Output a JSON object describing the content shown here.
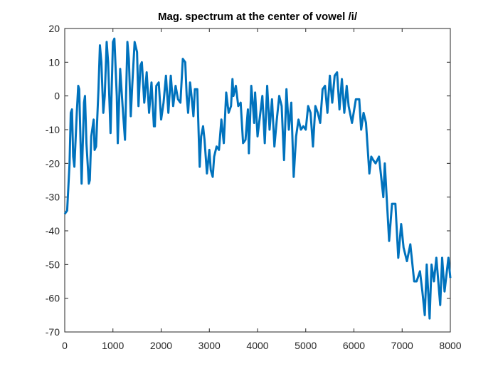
{
  "chart_data": {
    "type": "line",
    "title": "Mag. spectrum at the center of vowel /i/",
    "color": "#0072bd",
    "x": [
      0,
      50,
      100,
      125,
      150,
      175,
      200,
      250,
      280,
      300,
      350,
      400,
      420,
      450,
      500,
      520,
      550,
      600,
      620,
      650,
      700,
      730,
      760,
      800,
      830,
      870,
      900,
      950,
      1000,
      1030,
      1080,
      1100,
      1150,
      1200,
      1250,
      1300,
      1330,
      1370,
      1400,
      1450,
      1500,
      1530,
      1570,
      1600,
      1650,
      1700,
      1750,
      1800,
      1850,
      1870,
      1900,
      1950,
      2000,
      2050,
      2100,
      2150,
      2200,
      2250,
      2300,
      2350,
      2400,
      2450,
      2500,
      2530,
      2560,
      2600,
      2630,
      2670,
      2700,
      2750,
      2800,
      2830,
      2870,
      2900,
      2950,
      3000,
      3030,
      3070,
      3100,
      3150,
      3200,
      3250,
      3300,
      3350,
      3400,
      3450,
      3480,
      3500,
      3550,
      3600,
      3650,
      3700,
      3750,
      3800,
      3820,
      3870,
      3900,
      3930,
      3950,
      4000,
      4050,
      4100,
      4150,
      4200,
      4250,
      4300,
      4350,
      4400,
      4450,
      4500,
      4550,
      4600,
      4650,
      4700,
      4750,
      4800,
      4850,
      4900,
      4950,
      5000,
      5050,
      5100,
      5150,
      5200,
      5250,
      5300,
      5350,
      5400,
      5450,
      5500,
      5550,
      5600,
      5650,
      5700,
      5750,
      5800,
      5850,
      5890,
      5960,
      6040,
      6110,
      6150,
      6200,
      6250,
      6320,
      6360,
      6400,
      6450,
      6520,
      6610,
      6640,
      6730,
      6790,
      6860,
      6920,
      6980,
      7030,
      7100,
      7170,
      7250,
      7300,
      7370,
      7420,
      7470,
      7510,
      7570,
      7610,
      7660,
      7710,
      7790,
      7830,
      7880,
      7960,
      8000
    ],
    "values": [
      -35,
      -34,
      -20,
      -5,
      -4,
      -18,
      -21,
      -5,
      3,
      2,
      -26,
      -2,
      0,
      -14,
      -26,
      -25,
      -12,
      -7,
      -16,
      -15,
      2,
      15,
      10,
      -5,
      0,
      16,
      10,
      -11,
      16,
      17,
      0,
      -14,
      8,
      -3,
      -13,
      16,
      11,
      -6,
      3,
      16,
      13,
      -3,
      9,
      10,
      -2,
      7,
      -5,
      4,
      -9,
      -9,
      3,
      4,
      -7,
      -2,
      6,
      -5,
      6,
      -3,
      3,
      -1,
      -2,
      11,
      10,
      0,
      -5,
      4,
      0,
      -6,
      2,
      2,
      -21,
      -12,
      -9,
      -13,
      -23,
      -16,
      -22,
      -24,
      -18,
      -15,
      -16,
      -7,
      -14,
      1,
      -5,
      -3,
      5,
      0,
      3,
      -3,
      -2,
      -14,
      -13,
      -4,
      -17,
      3,
      -2,
      -8,
      1,
      -12,
      -6,
      0,
      -14,
      3,
      -10,
      -1,
      -15,
      -7,
      0,
      -3,
      -19,
      2,
      -10,
      -2,
      -24,
      -12,
      -7,
      -10,
      -9,
      -10,
      -3,
      -5,
      -15,
      -3,
      -5,
      -8,
      2,
      3,
      -5,
      6,
      -2,
      6,
      7,
      -4,
      5,
      -5,
      3,
      -3,
      -8,
      -1,
      -1,
      -10,
      -5,
      -8,
      -23,
      -18,
      -19,
      -20,
      -18,
      -30,
      -20,
      -43,
      -32,
      -32,
      -48,
      -38,
      -45,
      -49,
      -44,
      -55,
      -55,
      -52,
      -58,
      -65,
      -50,
      -66,
      -50,
      -55,
      -48,
      -62,
      -48,
      -58,
      -48,
      -54
    ],
    "xlim": [
      0,
      8000
    ],
    "xticks": [
      0,
      1000,
      2000,
      3000,
      4000,
      5000,
      6000,
      7000,
      8000
    ],
    "ylim": [
      -70,
      20
    ],
    "yticks": [
      -70,
      -60,
      -50,
      -40,
      -30,
      -20,
      -10,
      0,
      10,
      20
    ]
  }
}
